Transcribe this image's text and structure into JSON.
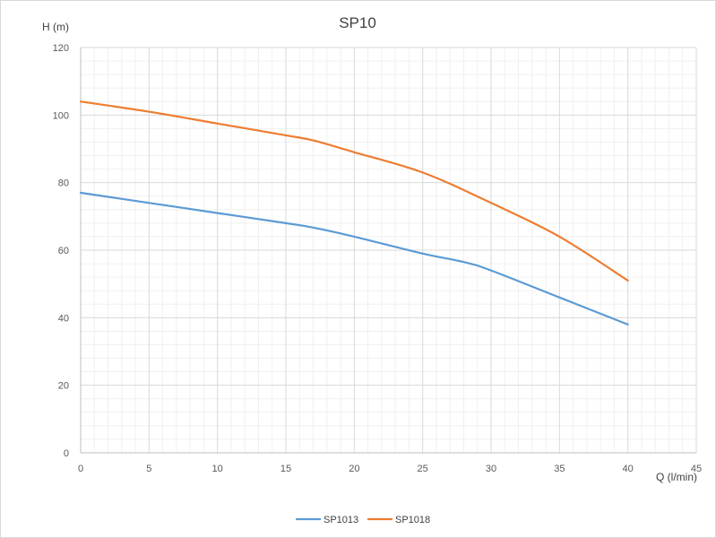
{
  "chart_data": {
    "type": "line",
    "title": "SP10",
    "xlabel": "Q (l/min)",
    "ylabel": "H (m)",
    "xlim": [
      0,
      45
    ],
    "ylim": [
      0,
      120
    ],
    "x_ticks": [
      0,
      5,
      10,
      15,
      20,
      25,
      30,
      35,
      40,
      45
    ],
    "y_ticks": [
      0,
      20,
      40,
      60,
      80,
      100,
      120
    ],
    "grid": true,
    "minor_grid": true,
    "legend_position": "bottom",
    "series": [
      {
        "name": "SP1013",
        "color": "#5b9bd5",
        "points": [
          [
            0,
            77
          ],
          [
            5,
            74
          ],
          [
            10,
            71
          ],
          [
            15,
            68
          ],
          [
            17,
            66.7
          ],
          [
            20,
            64
          ],
          [
            25,
            59
          ],
          [
            28,
            56.5
          ],
          [
            30,
            54
          ],
          [
            35,
            46
          ],
          [
            40,
            38
          ]
        ]
      },
      {
        "name": "SP1018",
        "color": "#ed7d31",
        "points": [
          [
            0,
            104
          ],
          [
            5,
            101
          ],
          [
            10,
            97.5
          ],
          [
            15,
            94
          ],
          [
            17,
            92.5
          ],
          [
            20,
            89
          ],
          [
            25,
            83
          ],
          [
            30,
            74
          ],
          [
            35,
            64
          ],
          [
            40,
            51
          ]
        ]
      }
    ]
  }
}
